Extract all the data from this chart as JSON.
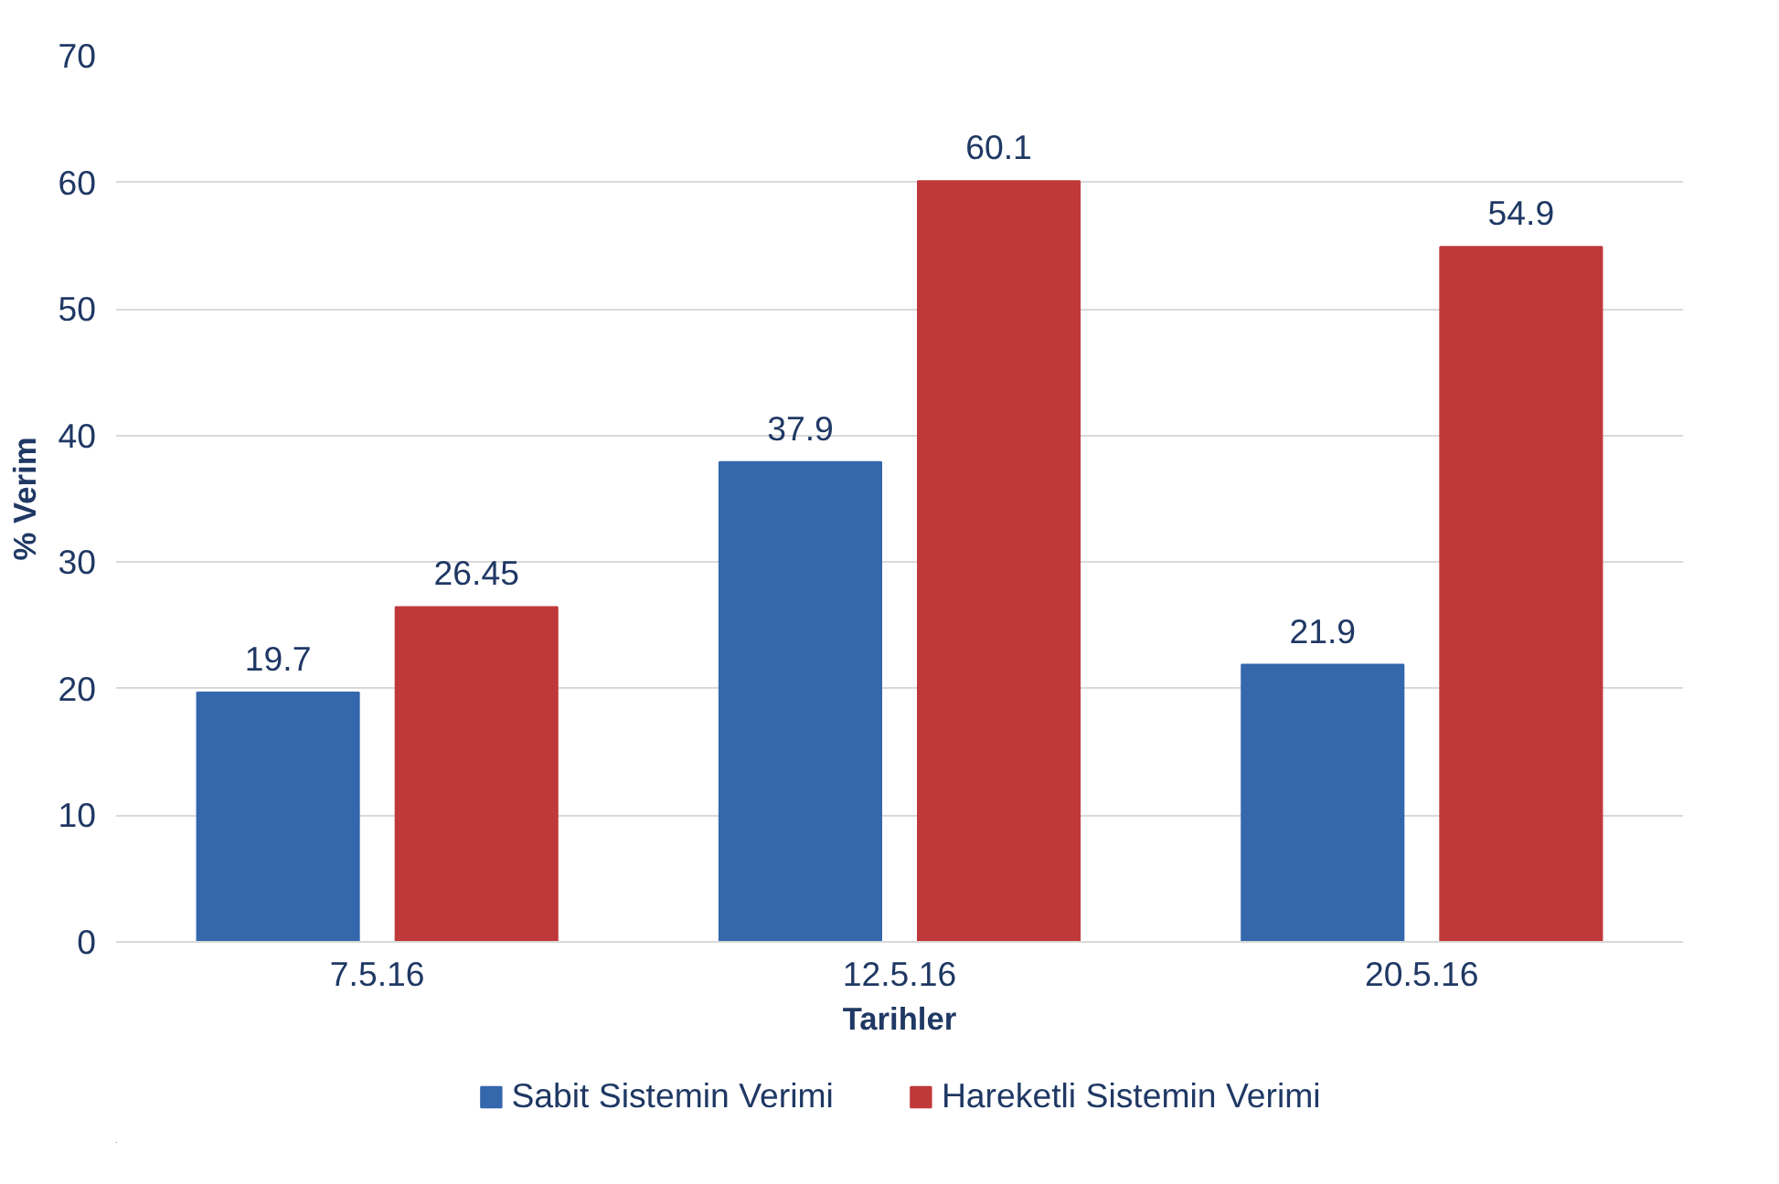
{
  "chart_data": {
    "type": "bar",
    "xlabel": "Tarihler",
    "ylabel": "% Verim",
    "categories": [
      "7.5.16",
      "12.5.16",
      "20.5.16"
    ],
    "series": [
      {
        "name": "Sabit Sistemin Verimi",
        "color": "#3567ad",
        "values": [
          19.7,
          37.9,
          21.9
        ]
      },
      {
        "name": "Hareketli Sistemin Verimi",
        "color": "#c0393a",
        "values": [
          26.45,
          60.1,
          54.9
        ]
      }
    ],
    "ylim": [
      0,
      70
    ],
    "yticks": [
      0,
      10,
      20,
      30,
      40,
      50,
      60,
      70
    ],
    "grid": "y",
    "legend": "bottom",
    "data_labels": true
  }
}
